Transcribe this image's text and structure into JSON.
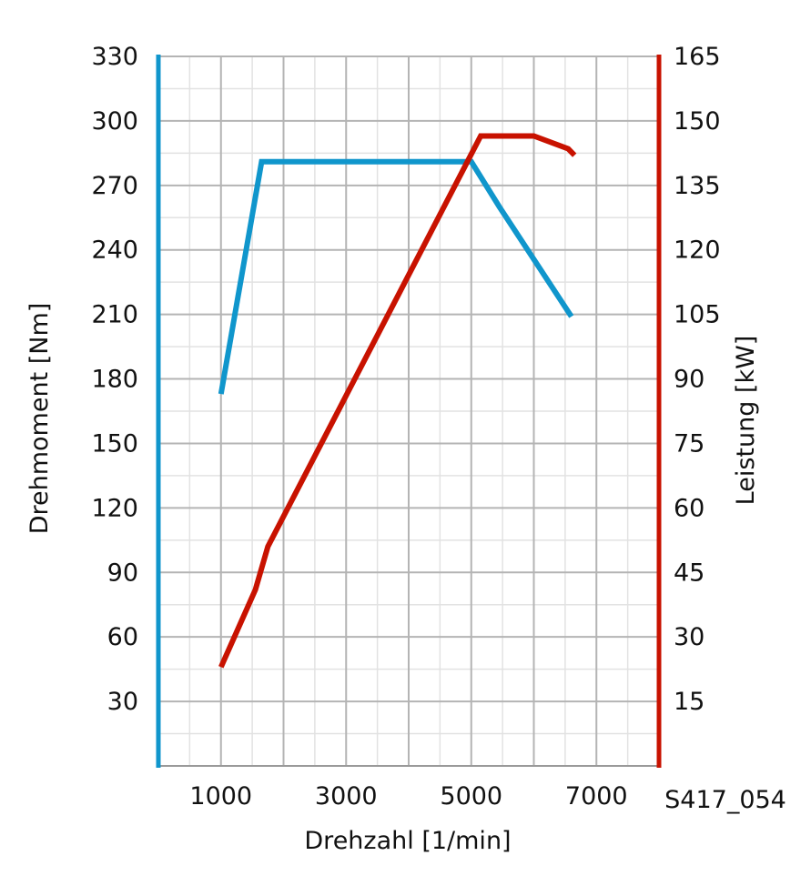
{
  "chart_data": {
    "type": "line",
    "x": {
      "label": "Drehzahl [1/min]",
      "range": [
        0,
        8000
      ],
      "tick_labels": [
        "1000",
        "3000",
        "5000",
        "7000"
      ],
      "tick_values": [
        1000,
        3000,
        5000,
        7000
      ]
    },
    "y_left": {
      "label": "Drehmoment [Nm]",
      "range": [
        0,
        330
      ],
      "tick_labels": [
        "30",
        "60",
        "90",
        "120",
        "150",
        "180",
        "210",
        "240",
        "270",
        "300",
        "330"
      ],
      "tick_values": [
        30,
        60,
        90,
        120,
        150,
        180,
        210,
        240,
        270,
        300,
        330
      ],
      "color": "#1096cc"
    },
    "y_right": {
      "label": "Leistung [kW]",
      "range": [
        0,
        165
      ],
      "tick_labels": [
        "15",
        "30",
        "45",
        "60",
        "75",
        "90",
        "105",
        "120",
        "135",
        "150",
        "165"
      ],
      "tick_values": [
        15,
        30,
        45,
        60,
        75,
        90,
        105,
        120,
        135,
        150,
        165
      ],
      "color": "#c81200"
    },
    "grid": true,
    "series": [
      {
        "axis": "left",
        "color": "#1096cc",
        "points": [
          [
            1000,
            173
          ],
          [
            1650,
            281
          ],
          [
            5000,
            281
          ],
          [
            5450,
            260
          ],
          [
            6600,
            209
          ]
        ]
      },
      {
        "axis": "right",
        "color": "#c81200",
        "points": [
          [
            1000,
            23
          ],
          [
            1550,
            41
          ],
          [
            1750,
            51
          ],
          [
            5150,
            146.5
          ],
          [
            6000,
            146.5
          ],
          [
            6550,
            143.5
          ],
          [
            6650,
            142
          ]
        ]
      }
    ],
    "annotations": [
      "S417_054"
    ]
  }
}
